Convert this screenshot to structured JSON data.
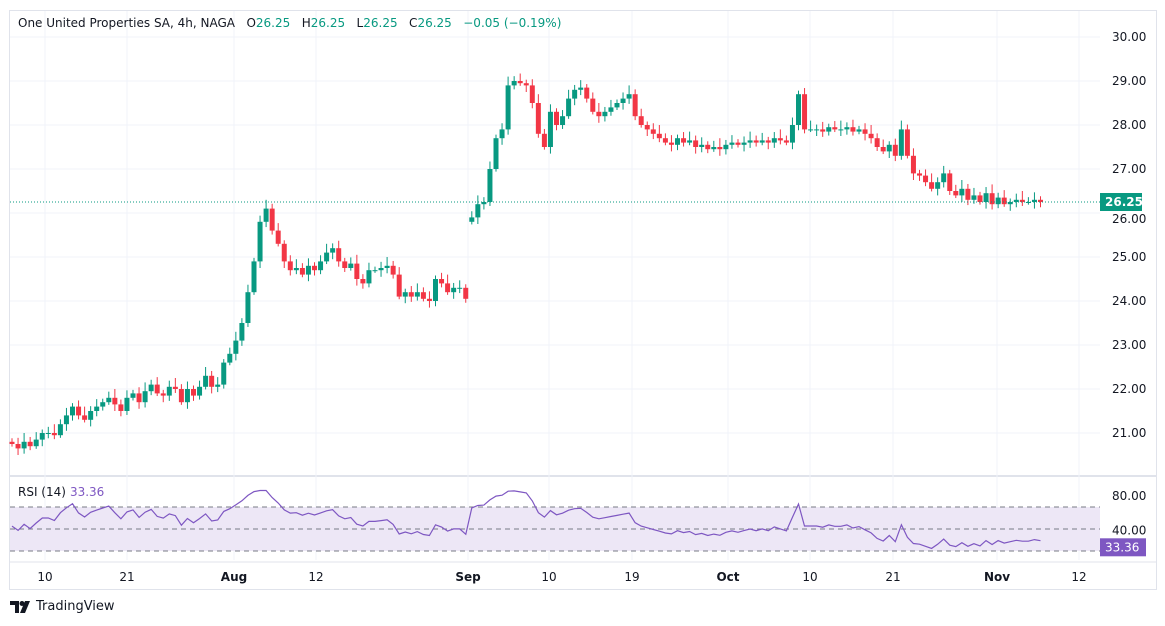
{
  "header": {
    "symbol": "One United Properties SA, 4h, NAGA",
    "o_label": "O",
    "o": "26.25",
    "h_label": "H",
    "h": "26.25",
    "l_label": "L",
    "l": "26.25",
    "c_label": "C",
    "c": "26.25",
    "change": "−0.05 (−0.19%)"
  },
  "rsi": {
    "label": "RSI (14)",
    "value": "33.36",
    "ticks": [
      "80.00",
      "40.00"
    ],
    "levels": [
      70,
      50,
      30
    ]
  },
  "brand": {
    "name": "TradingView"
  },
  "colors": {
    "up": "#089981",
    "down": "#f23645",
    "rsi": "#7e57c2",
    "rsi_band": "#ede7f6",
    "grid": "#f0f3fa"
  },
  "chart_data": {
    "type": "candlestick",
    "interval": "4h",
    "ylim": [
      20.4,
      30.4
    ],
    "yticks": [
      "30.00",
      "29.00",
      "28.00",
      "27.00",
      "26.00",
      "25.00",
      "24.00",
      "23.00",
      "22.00",
      "21.00"
    ],
    "last_price": "26.25",
    "xticks": [
      {
        "label": "10",
        "bold": false
      },
      {
        "label": "21",
        "bold": false
      },
      {
        "label": "Aug",
        "bold": true
      },
      {
        "label": "12",
        "bold": false
      },
      {
        "label": "Sep",
        "bold": true
      },
      {
        "label": "10",
        "bold": false
      },
      {
        "label": "19",
        "bold": false
      },
      {
        "label": "Oct",
        "bold": true
      },
      {
        "label": "10",
        "bold": false
      },
      {
        "label": "21",
        "bold": false
      },
      {
        "label": "Nov",
        "bold": true
      },
      {
        "label": "12",
        "bold": false
      }
    ],
    "closes": [
      20.75,
      20.65,
      20.8,
      20.7,
      20.85,
      21.0,
      21.0,
      20.95,
      21.2,
      21.4,
      21.6,
      21.4,
      21.3,
      21.5,
      21.6,
      21.7,
      21.8,
      21.65,
      21.5,
      21.8,
      21.9,
      21.7,
      21.95,
      22.1,
      21.9,
      21.85,
      22.05,
      22.0,
      21.7,
      22.0,
      21.85,
      22.05,
      22.3,
      22.05,
      22.1,
      22.6,
      22.8,
      23.1,
      23.5,
      24.2,
      24.9,
      25.8,
      26.1,
      25.6,
      25.3,
      24.9,
      24.7,
      24.75,
      24.6,
      24.8,
      24.7,
      24.9,
      25.1,
      25.2,
      24.9,
      24.75,
      24.85,
      24.5,
      24.4,
      24.7,
      24.7,
      24.75,
      24.8,
      24.6,
      24.1,
      24.2,
      24.1,
      24.2,
      24.05,
      24.0,
      24.5,
      24.4,
      24.2,
      24.3,
      24.3,
      24.05,
      25.9,
      26.2,
      26.25,
      27.0,
      27.7,
      27.9,
      28.9,
      29.0,
      28.95,
      28.9,
      28.5,
      27.8,
      27.5,
      28.3,
      28.0,
      28.2,
      28.6,
      28.8,
      28.85,
      28.6,
      28.3,
      28.2,
      28.3,
      28.4,
      28.5,
      28.6,
      28.7,
      28.2,
      28.0,
      27.9,
      27.8,
      27.7,
      27.6,
      27.55,
      27.7,
      27.6,
      27.65,
      27.5,
      27.55,
      27.45,
      27.5,
      27.45,
      27.55,
      27.6,
      27.55,
      27.6,
      27.65,
      27.6,
      27.65,
      27.6,
      27.7,
      27.65,
      27.6,
      28.0,
      28.7,
      27.9,
      27.9,
      27.9,
      27.85,
      27.95,
      27.9,
      27.9,
      27.95,
      27.85,
      27.9,
      27.8,
      27.7,
      27.5,
      27.4,
      27.55,
      27.3,
      27.9,
      27.3,
      26.9,
      26.85,
      26.7,
      26.55,
      26.7,
      26.9,
      26.5,
      26.4,
      26.55,
      26.3,
      26.4,
      26.25,
      26.45,
      26.2,
      26.35,
      26.2,
      26.25,
      26.3,
      26.25,
      26.25,
      26.3,
      26.25
    ],
    "gap_open": {
      "index": 76,
      "open": 25.8
    }
  }
}
